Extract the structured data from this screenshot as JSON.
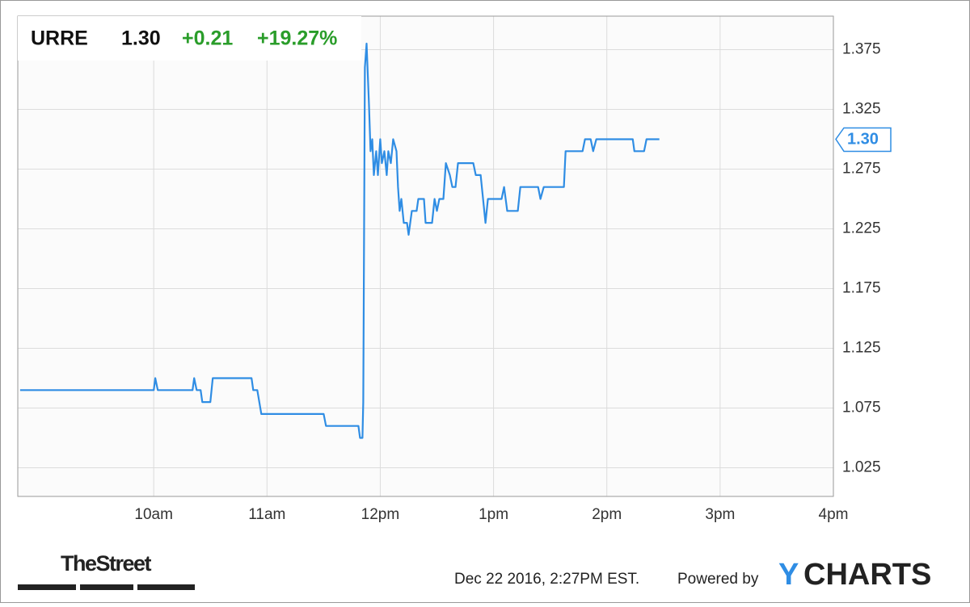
{
  "chart_data": {
    "type": "line",
    "symbol": "URRE",
    "price": "1.30",
    "change": "+0.21",
    "change_pct": "+19.27%",
    "color": "#2f8de4",
    "x": [
      8.821,
      10.0,
      10.014,
      10.036,
      10.343,
      10.357,
      10.379,
      10.414,
      10.429,
      10.5,
      10.521,
      10.864,
      10.879,
      10.914,
      10.95,
      11.5,
      11.521,
      11.807,
      11.821,
      11.843,
      11.85,
      11.864,
      11.879,
      11.9,
      11.914,
      11.929,
      11.943,
      11.964,
      11.979,
      12.0,
      12.014,
      12.036,
      12.057,
      12.071,
      12.093,
      12.114,
      12.143,
      12.157,
      12.171,
      12.186,
      12.207,
      12.236,
      12.25,
      12.279,
      12.321,
      12.336,
      12.386,
      12.4,
      12.457,
      12.479,
      12.5,
      12.521,
      12.557,
      12.579,
      12.614,
      12.636,
      12.664,
      12.686,
      12.821,
      12.843,
      12.886,
      12.907,
      12.929,
      12.95,
      13.071,
      13.093,
      13.121,
      13.214,
      13.236,
      13.393,
      13.414,
      13.443,
      13.621,
      13.636,
      13.786,
      13.807,
      13.857,
      13.879,
      13.907,
      14.229,
      14.243,
      14.329,
      14.35,
      14.464
    ],
    "values": [
      1.09,
      1.09,
      1.1,
      1.09,
      1.09,
      1.1,
      1.09,
      1.09,
      1.08,
      1.08,
      1.1,
      1.1,
      1.09,
      1.09,
      1.07,
      1.07,
      1.06,
      1.06,
      1.05,
      1.05,
      1.08,
      1.36,
      1.38,
      1.33,
      1.29,
      1.3,
      1.27,
      1.29,
      1.27,
      1.3,
      1.28,
      1.29,
      1.27,
      1.29,
      1.28,
      1.3,
      1.29,
      1.26,
      1.24,
      1.25,
      1.23,
      1.23,
      1.22,
      1.24,
      1.24,
      1.25,
      1.25,
      1.23,
      1.23,
      1.25,
      1.24,
      1.25,
      1.25,
      1.28,
      1.27,
      1.26,
      1.26,
      1.28,
      1.28,
      1.27,
      1.27,
      1.25,
      1.23,
      1.25,
      1.25,
      1.26,
      1.24,
      1.24,
      1.26,
      1.26,
      1.25,
      1.26,
      1.26,
      1.29,
      1.29,
      1.3,
      1.3,
      1.29,
      1.3,
      1.3,
      1.29,
      1.29,
      1.3,
      1.3
    ],
    "xlim": [
      8.8,
      16
    ],
    "xticks": [
      {
        "value": 10,
        "label": "10am"
      },
      {
        "value": 11,
        "label": "11am"
      },
      {
        "value": 12,
        "label": "12pm"
      },
      {
        "value": 13,
        "label": "1pm"
      },
      {
        "value": 14,
        "label": "2pm"
      },
      {
        "value": 15,
        "label": "3pm"
      },
      {
        "value": 16,
        "label": "4pm"
      }
    ],
    "ylim": [
      1.001,
      1.403
    ],
    "yticks": [
      1.025,
      1.075,
      1.125,
      1.175,
      1.225,
      1.275,
      1.325,
      1.375
    ],
    "grid": true,
    "source": "TheStreet",
    "timestamp": "Dec 22 2016, 2:27PM EST.",
    "powered": "Powered by",
    "logo_y": "Y",
    "logo_rest": "CHARTS"
  }
}
